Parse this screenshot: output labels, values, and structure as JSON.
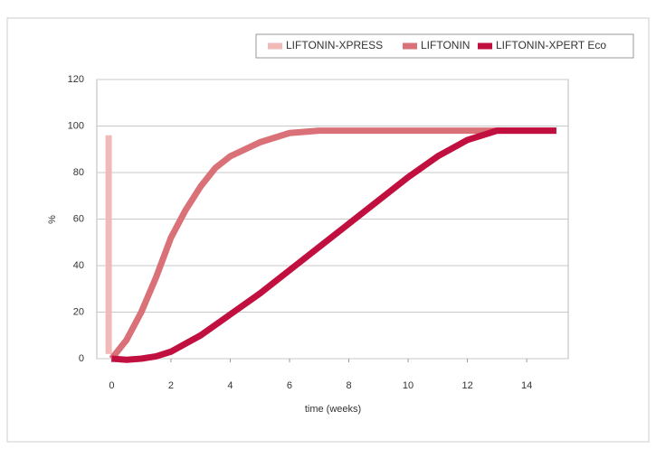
{
  "chart_data": {
    "type": "line",
    "x_label": "time (weeks)",
    "y_label": "%",
    "xlim": [
      -0.5,
      15.4
    ],
    "xticks": [
      0,
      2,
      4,
      6,
      8,
      10,
      12,
      14
    ],
    "ylim": [
      0,
      120
    ],
    "yticks": [
      0,
      20,
      40,
      60,
      80,
      100,
      120
    ],
    "grid": true,
    "legend": "top-right",
    "series": [
      {
        "name": "LIFTONIN-XPRESS",
        "color": "#f2b9b9",
        "x": [
          -0.1,
          -0.1
        ],
        "values": [
          2,
          96
        ]
      },
      {
        "name": "LIFTONIN",
        "color": "#da7078",
        "x": [
          0,
          0.5,
          1,
          1.5,
          2,
          2.5,
          3,
          3.5,
          4,
          5,
          6,
          7,
          8,
          10,
          12,
          15
        ],
        "values": [
          0,
          8,
          20,
          35,
          52,
          64,
          74,
          82,
          87,
          93,
          97,
          98,
          98,
          98,
          98,
          98
        ]
      },
      {
        "name": "LIFTONIN-XPERT Eco",
        "color": "#c1103f",
        "x": [
          0,
          0.5,
          1,
          1.5,
          2,
          3,
          4,
          5,
          6,
          7,
          8,
          9,
          10,
          11,
          12,
          13,
          14,
          15
        ],
        "values": [
          0,
          -0.5,
          0,
          1,
          3,
          10,
          19,
          28,
          38,
          48,
          58,
          68,
          78,
          87,
          94,
          98,
          98,
          98
        ]
      }
    ]
  }
}
